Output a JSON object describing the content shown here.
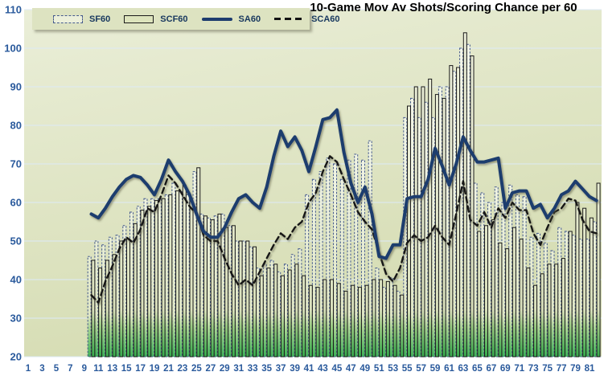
{
  "title": "10-Game Mov Av Shots/Scoring Chance per 60",
  "colors": {
    "plot_bg_top": "#eaeed8",
    "plot_bg_bottom": "#d5dcb2",
    "gridline": "#ddeaf6",
    "axis_label": "#2a5a9c",
    "legend_bg": "#dde3c1",
    "legend_text": "#17375E",
    "sf60_border": "#44598c",
    "scf60_border": "#1a1a1a",
    "sa60_line": "#1d3c6e",
    "sca60_line": "#141414",
    "bar_green_base": "#36a94c",
    "bar_pale_fill": "#eef2dc"
  },
  "legend": {
    "items": [
      {
        "label": "SF60",
        "type": "bar-dashed"
      },
      {
        "label": "SCF60",
        "type": "bar-solid"
      },
      {
        "label": "SA60",
        "type": "line-solid"
      },
      {
        "label": "SCA60",
        "type": "line-dashed"
      }
    ]
  },
  "chart_data": {
    "type": "bar",
    "subtype": "combo-bars-and-lines",
    "title": "10-Game Mov Av Shots/Scoring Chance per 60",
    "xlabel": "",
    "ylabel": "",
    "ylim": [
      20,
      110
    ],
    "y_ticks": [
      20,
      30,
      40,
      50,
      60,
      70,
      80,
      90,
      100,
      110
    ],
    "x_axis_ticks": [
      1,
      3,
      5,
      7,
      9,
      11,
      13,
      15,
      17,
      19,
      21,
      23,
      25,
      27,
      29,
      31,
      33,
      35,
      37,
      39,
      41,
      43,
      45,
      47,
      49,
      51,
      53,
      55,
      57,
      59,
      61,
      63,
      65,
      67,
      69,
      71,
      73,
      75,
      77,
      79,
      81
    ],
    "x_start_game": 10,
    "x_end_game": 82,
    "grid": true,
    "legend_position": "top-left",
    "series": [
      {
        "name": "SF60",
        "type": "bar",
        "style": "dashed-outline",
        "values": [
          46,
          50,
          49,
          51,
          51.5,
          54,
          57.5,
          59,
          61,
          61,
          61,
          62,
          65,
          63,
          62,
          68,
          57,
          56,
          56.5,
          57,
          54,
          50,
          50,
          48.5,
          43,
          44,
          45,
          42,
          44,
          46.5,
          48,
          62,
          66,
          68,
          71.5,
          70,
          66,
          71,
          72.5,
          71,
          76,
          43,
          38,
          40.5,
          37,
          82,
          87,
          82,
          86,
          82,
          90,
          90,
          94,
          100,
          101,
          65,
          62.5,
          60,
          64,
          60,
          64.5,
          62,
          61.5,
          51,
          52,
          49.5,
          47.5,
          53.5,
          52.5,
          51.5,
          50.5,
          50.5,
          55
        ]
      },
      {
        "name": "SCF60",
        "type": "bar",
        "style": "solid-outline",
        "values": [
          45,
          43,
          45,
          46.5,
          50,
          50.5,
          54.5,
          58,
          59,
          60.5,
          61,
          62,
          63,
          64.5,
          60.5,
          69,
          56.5,
          55.5,
          57,
          53.5,
          54,
          50,
          50,
          48.5,
          41,
          43,
          44,
          41,
          42.5,
          44,
          41,
          38.5,
          38,
          40,
          40,
          39,
          37,
          38.5,
          38,
          38.5,
          40,
          40,
          39.5,
          38.5,
          36,
          85,
          90,
          90,
          92,
          88,
          87,
          95.5,
          95,
          104,
          98,
          52.5,
          54,
          55.5,
          49.5,
          48,
          53.5,
          50.5,
          43,
          38.5,
          41.5,
          44,
          44,
          45.5,
          52.5,
          60,
          58.5,
          56,
          65
        ]
      },
      {
        "name": "SA60",
        "type": "line",
        "style": "solid",
        "values": [
          57,
          56,
          58.5,
          61.5,
          64,
          66,
          67,
          66.5,
          64.5,
          62,
          66,
          71,
          68,
          65.5,
          62,
          57,
          52.5,
          51,
          51,
          53.5,
          57.5,
          61,
          62,
          60,
          58.5,
          64,
          72,
          78.5,
          74.5,
          77,
          73.5,
          68,
          74.5,
          81.5,
          82,
          84,
          73,
          65,
          60,
          64,
          57,
          46,
          45.5,
          49,
          49,
          61,
          61.5,
          61.5,
          66,
          74,
          69.5,
          64.5,
          70,
          77,
          73.5,
          70.5,
          70.5,
          71,
          71.5,
          58.5,
          62.5,
          63,
          63,
          58.5,
          59.5,
          56,
          58.5,
          62,
          63,
          65.5,
          63.5,
          61.5,
          60.5
        ]
      },
      {
        "name": "SCA60",
        "type": "line",
        "style": "dashed",
        "values": [
          36,
          34,
          39.5,
          43.5,
          48,
          51,
          49.5,
          53,
          58.5,
          57.5,
          62,
          67,
          65,
          62,
          59,
          57,
          51.5,
          50,
          50,
          45.5,
          41.5,
          38.5,
          40,
          38.5,
          42,
          45.5,
          49,
          52,
          50.5,
          53.5,
          55,
          60,
          62.5,
          68,
          72,
          70.5,
          66,
          62,
          57.5,
          55,
          53,
          47,
          41.5,
          39.5,
          43,
          49.5,
          51.5,
          50,
          51,
          54,
          51,
          49,
          57,
          65.5,
          55.5,
          54,
          57.5,
          53.5,
          58.5,
          56,
          60,
          58,
          58,
          52,
          49,
          53.5,
          57.5,
          58.5,
          61,
          60.5,
          55.5,
          52.5,
          52
        ]
      }
    ]
  }
}
